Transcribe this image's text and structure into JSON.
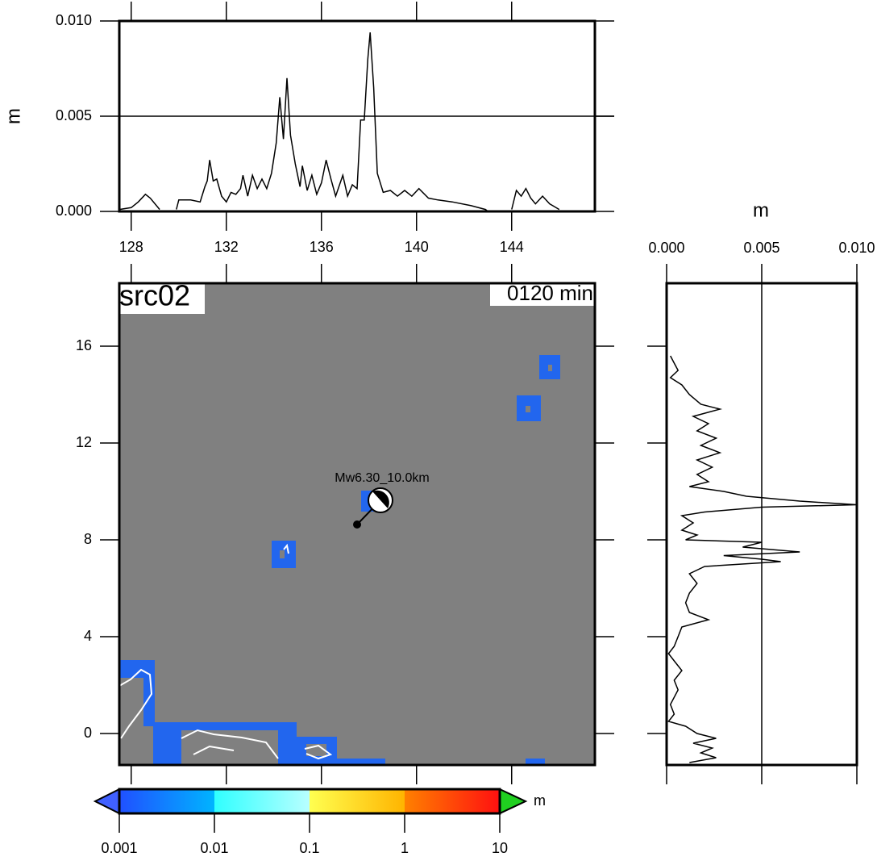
{
  "chart_data": [
    {
      "type": "line",
      "ylabel": "m",
      "x": [
        127.5,
        128.0,
        128.3,
        128.6,
        128.8,
        129.0,
        129.2,
        129.5,
        129.9,
        130.0,
        130.5,
        130.9,
        131.1,
        131.2,
        131.3,
        131.45,
        131.6,
        131.8,
        132.0,
        132.2,
        132.4,
        132.6,
        132.7,
        132.9,
        133.1,
        133.3,
        133.5,
        133.7,
        133.9,
        134.1,
        134.25,
        134.4,
        134.55,
        134.7,
        134.9,
        135.1,
        135.2,
        135.4,
        135.6,
        135.8,
        136.0,
        136.2,
        136.4,
        136.6,
        136.9,
        137.1,
        137.3,
        137.5,
        137.65,
        137.8,
        137.95,
        138.05,
        138.2,
        138.35,
        138.6,
        138.9,
        139.2,
        139.5,
        139.8,
        140.1,
        140.5,
        140.9,
        141.5,
        142.3,
        142.9,
        143.0,
        143.7,
        144.0,
        144.2,
        144.4,
        144.6,
        144.8,
        145.0,
        145.3,
        145.6,
        146.0
      ],
      "series": [
        {
          "color": "#000000",
          "values": [
            0.0001,
            0.0002,
            0.0005,
            0.0009,
            0.0007,
            0.0004,
            0.0001,
            null,
            0.0001,
            0.0006,
            0.0006,
            0.0005,
            0.0013,
            0.0016,
            0.0027,
            0.0016,
            0.0017,
            0.0008,
            0.0005,
            0.001,
            0.0009,
            0.0012,
            0.0019,
            0.0008,
            0.0019,
            0.0012,
            0.0017,
            0.0012,
            0.002,
            0.0036,
            0.006,
            0.0038,
            0.007,
            0.004,
            0.0025,
            0.0013,
            0.0024,
            0.0011,
            0.0019,
            0.0009,
            0.0015,
            0.0027,
            0.0017,
            0.0008,
            0.0019,
            0.0008,
            0.0014,
            0.0012,
            0.0048,
            0.0048,
            0.008,
            0.0094,
            0.0065,
            0.002,
            0.001,
            0.0011,
            0.0008,
            0.0011,
            0.0008,
            0.0012,
            0.0007,
            0.0006,
            0.0005,
            0.0003,
            0.0001,
            0.0,
            null,
            0.0001,
            0.0011,
            0.0008,
            0.0012,
            0.0007,
            0.0004,
            0.0008,
            0.0004,
            0.0001
          ]
        }
      ],
      "xlim": [
        127.5,
        147.5
      ],
      "xticks": [
        128,
        132,
        136,
        140,
        144
      ],
      "ylim": [
        0,
        0.01
      ],
      "yticks": [
        {
          "value": 0,
          "label": "0.000"
        },
        {
          "value": 0.005,
          "label": "0.005"
        },
        {
          "value": 0.01,
          "label": "0.010"
        }
      ],
      "reference_line": 0.005
    },
    {
      "type": "profile",
      "xlabel": "m",
      "y": [
        15.6,
        15.3,
        15.0,
        14.7,
        14.4,
        14.0,
        13.6,
        13.4,
        13.1,
        12.8,
        12.5,
        12.2,
        11.9,
        11.6,
        11.3,
        11.0,
        10.7,
        10.4,
        10.2,
        10.0,
        9.8,
        9.6,
        9.45,
        9.35,
        9.15,
        9.0,
        8.7,
        8.4,
        8.2,
        8.0,
        7.9,
        7.7,
        7.5,
        7.35,
        7.2,
        7.1,
        6.9,
        6.6,
        6.2,
        5.8,
        5.4,
        5.0,
        4.7,
        4.4,
        4.0,
        3.6,
        3.3,
        3.0,
        2.6,
        2.2,
        1.8,
        1.2,
        0.8,
        0.5,
        0.3,
        0.0,
        -0.2,
        -0.4,
        -0.6,
        -0.8,
        -1.0,
        -1.2
      ],
      "series": [
        {
          "color": "#000000",
          "values": [
            0.0002,
            0.0004,
            0.0006,
            0.0002,
            0.0008,
            0.0012,
            0.0018,
            0.0028,
            0.0014,
            0.0022,
            0.0016,
            0.0026,
            0.0018,
            0.0028,
            0.0016,
            0.0024,
            0.0016,
            0.0022,
            0.0012,
            0.003,
            0.0042,
            0.007,
            0.01,
            0.005,
            0.002,
            0.0008,
            0.0014,
            0.0008,
            0.0016,
            0.001,
            0.005,
            0.004,
            0.007,
            0.003,
            0.005,
            0.006,
            0.002,
            0.0012,
            0.0016,
            0.0012,
            0.001,
            0.0012,
            0.0022,
            0.0008,
            0.0006,
            0.0004,
            0.0001,
            0.0004,
            0.0008,
            0.0004,
            0.0006,
            0.0002,
            0.0004,
            0.0001,
            0.001,
            0.0016,
            0.0026,
            0.0014,
            0.0024,
            0.0018,
            0.0026,
            0.0012
          ]
        }
      ],
      "xlim": [
        0,
        0.01
      ],
      "xticks": [
        {
          "value": 0,
          "label": "0.000"
        },
        {
          "value": 0.005,
          "label": "0.005"
        },
        {
          "value": 0.01,
          "label": "0.010"
        }
      ],
      "ylim": [
        -1.3,
        18.6
      ],
      "reference_line": 0.005
    },
    {
      "type": "map",
      "title": "src02",
      "time_label": "0120 min",
      "annotation": "Mw6.30_10.0km",
      "xlim": [
        127.5,
        147.5
      ],
      "ylim": [
        -1.3,
        18.6
      ],
      "yticks": [
        0,
        4,
        8,
        12,
        16
      ],
      "background": "#808080",
      "wet_color": "#2266ee"
    },
    {
      "type": "colorbar",
      "label": "m",
      "log": true,
      "xlim": [
        0.001,
        10
      ],
      "ticks": [
        0.001,
        0.01,
        0.1,
        1,
        10
      ],
      "segment_colors": [
        [
          "#2050ff",
          "#00b4ff"
        ],
        [
          "#30ffff",
          "#b8ffff"
        ],
        [
          "#ffff50",
          "#ffb400"
        ],
        [
          "#ff8000",
          "#ff1010"
        ]
      ],
      "under_color": "#4060ff",
      "over_color": "#20d020"
    }
  ]
}
